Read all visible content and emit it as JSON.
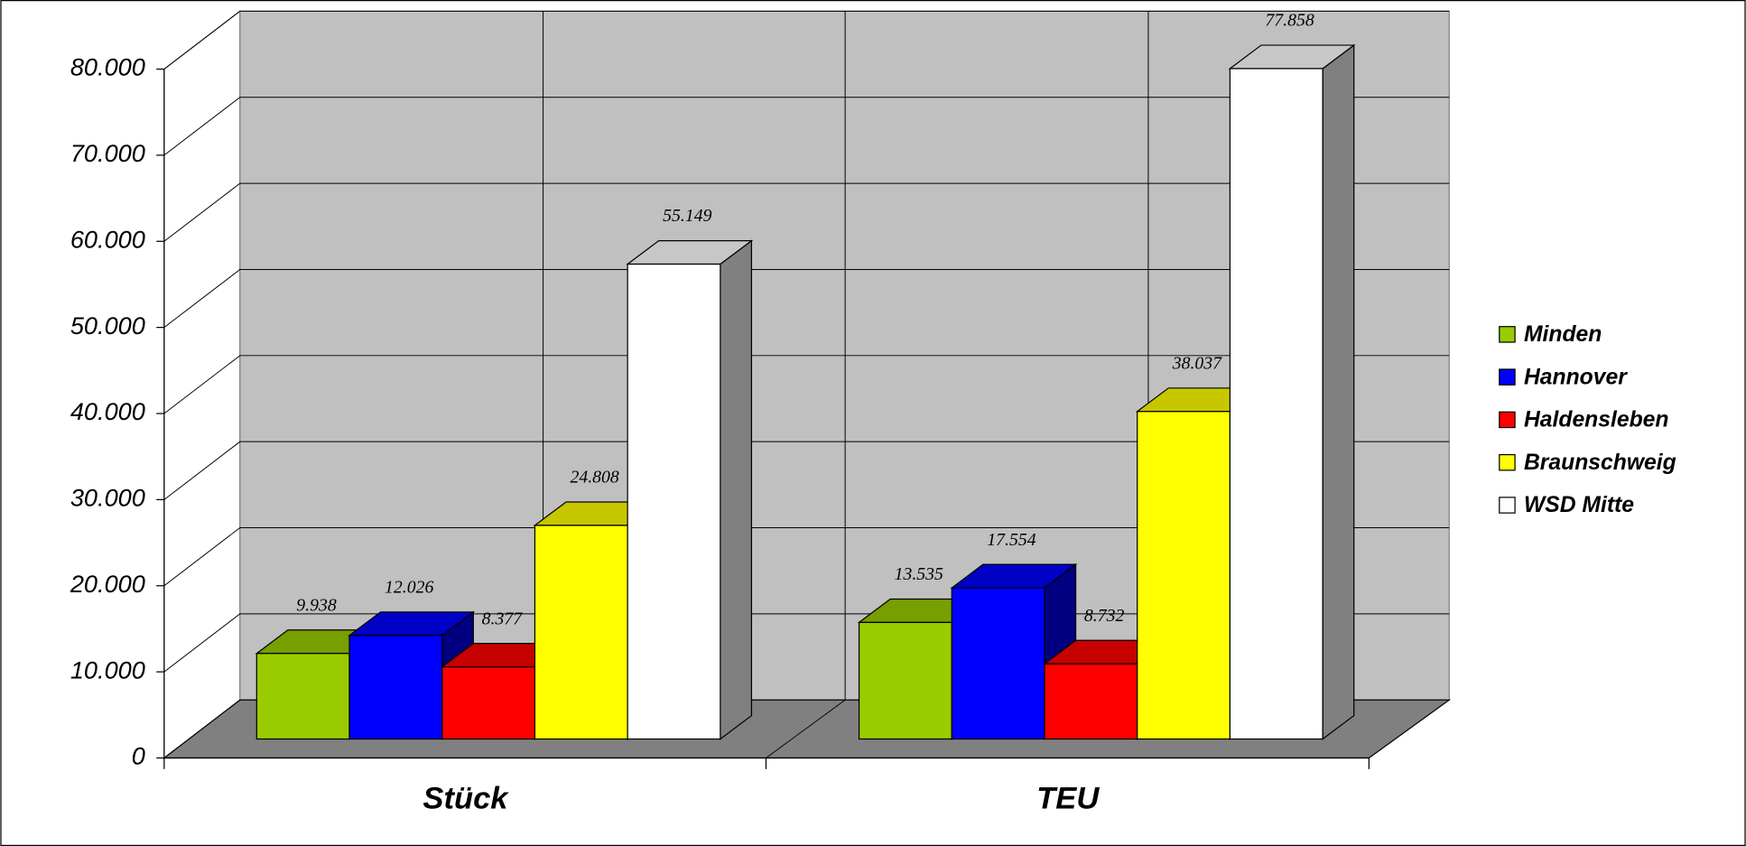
{
  "chart_data": {
    "type": "bar",
    "categories": [
      "Stück",
      "TEU"
    ],
    "series": [
      {
        "name": "Minden",
        "color": "#99cc00",
        "values": [
          9938,
          13535
        ],
        "value_labels": [
          "9.938",
          "13.535"
        ]
      },
      {
        "name": "Hannover",
        "color": "#0000ff",
        "values": [
          12026,
          17554
        ],
        "value_labels": [
          "12.026",
          "17.554"
        ]
      },
      {
        "name": "Haldensleben",
        "color": "#ff0000",
        "values": [
          8377,
          8732
        ],
        "value_labels": [
          "8.377",
          "8.732"
        ]
      },
      {
        "name": "Braunschweig",
        "color": "#ffff00",
        "values": [
          24808,
          38037
        ],
        "value_labels": [
          "24.808",
          "38.037"
        ]
      },
      {
        "name": "WSD Mitte",
        "color": "#ffffff",
        "values": [
          55149,
          77858
        ],
        "value_labels": [
          "55.149",
          "77.858"
        ]
      }
    ],
    "ylim": [
      0,
      80000
    ],
    "yticks": [
      0,
      {
        "value": 10000,
        "label": "10.000"
      },
      {
        "value": 20000,
        "label": "20.000"
      },
      {
        "value": 30000,
        "label": "30.000"
      },
      {
        "value": 40000,
        "label": "40.000"
      },
      {
        "value": 50000,
        "label": "50.000"
      },
      {
        "value": 60000,
        "label": "60.000"
      },
      {
        "value": 70000,
        "label": "70.000"
      },
      {
        "value": 80000,
        "label": "80.000"
      }
    ],
    "grid": true,
    "legend": "right"
  }
}
